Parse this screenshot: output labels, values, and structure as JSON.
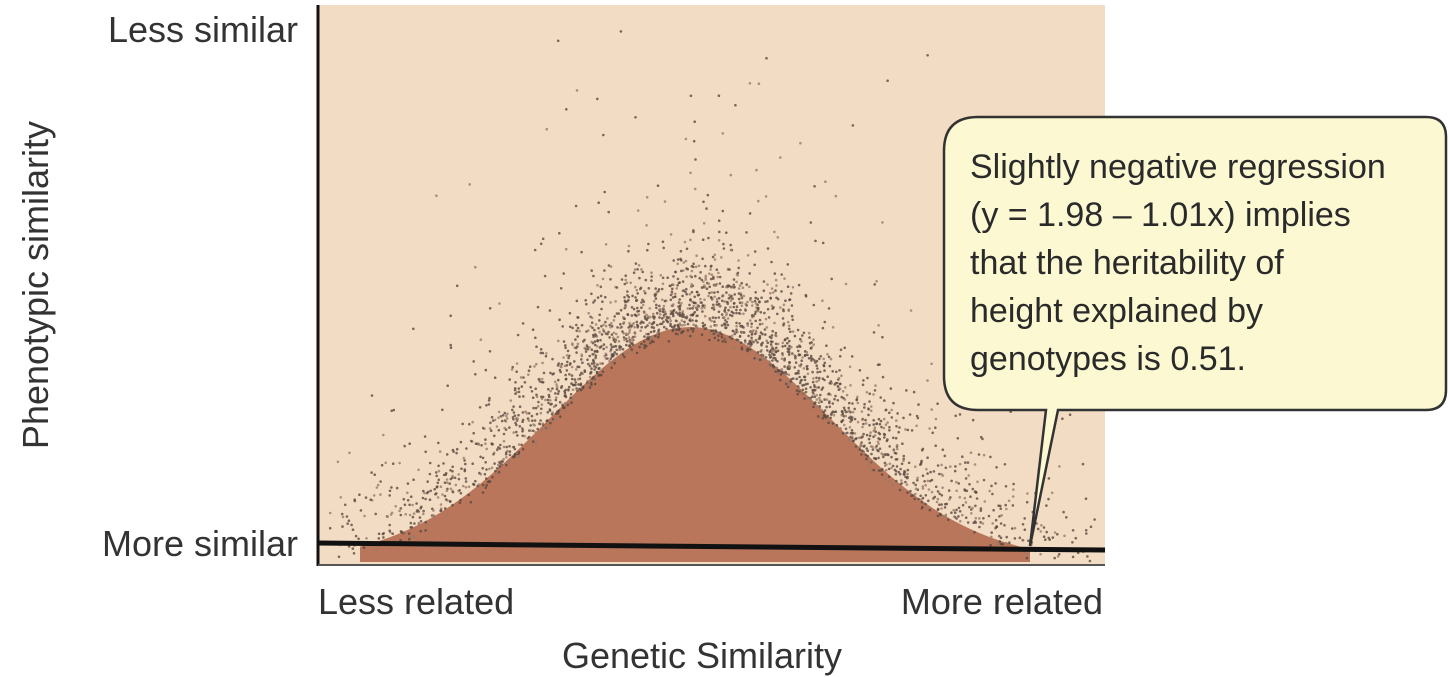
{
  "y_axis": {
    "label": "Phenotypic similarity",
    "top_label": "Less similar",
    "bottom_label": "More similar"
  },
  "x_axis": {
    "label": "Genetic Similarity",
    "left_label": "Less related",
    "right_label": "More related"
  },
  "callout": {
    "lines": [
      "Slightly negative regression",
      "(y = 1.98 – 1.01x) implies",
      "that the heritability of",
      "height explained by",
      "genotypes is 0.51."
    ]
  }
}
